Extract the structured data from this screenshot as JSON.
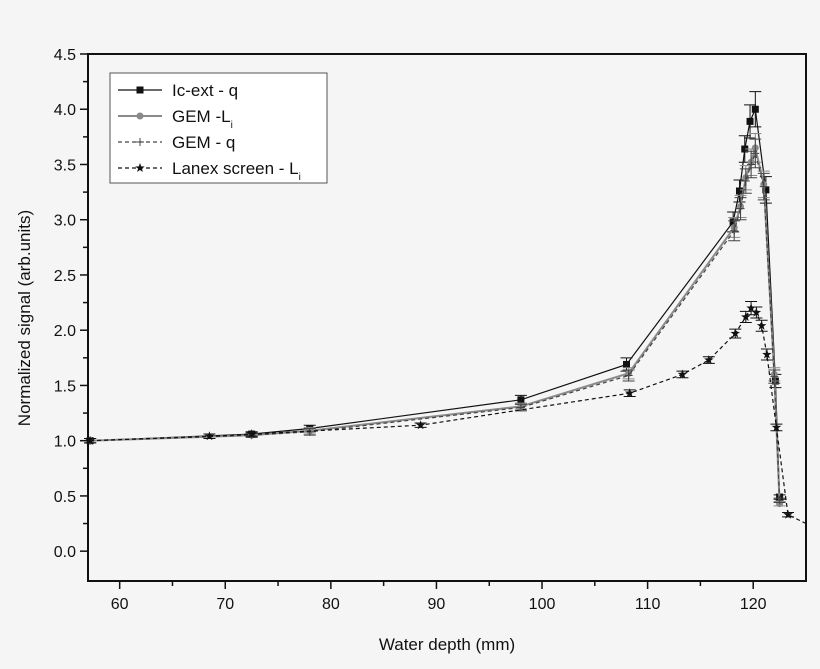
{
  "chart_data": {
    "type": "line",
    "title": "",
    "xlabel": "Water depth (mm)",
    "ylabel": "Normalized signal (arb.units)",
    "xlim": [
      57,
      125
    ],
    "ylim": [
      -0.27,
      4.5
    ],
    "xticks": [
      60,
      70,
      80,
      90,
      100,
      110,
      120
    ],
    "xtick_labels": [
      "60",
      "70",
      "80",
      "90",
      "100",
      "110",
      "120"
    ],
    "yticks": [
      0.0,
      0.5,
      1.0,
      1.5,
      2.0,
      2.5,
      3.0,
      3.5,
      4.0,
      4.5
    ],
    "ytick_labels": [
      "0.0",
      "0.5",
      "1.0",
      "1.5",
      "2.0",
      "2.5",
      "3.0",
      "3.5",
      "4.0",
      "4.5"
    ],
    "grid": false,
    "legend_position": "top-left",
    "series": [
      {
        "name": "Ic-ext - q",
        "legend_main": "Ic-ext - q",
        "legend_sub": "",
        "color": "#111111",
        "dash": "",
        "marker": "square",
        "x": [
          57.2,
          72.5,
          78.0,
          98.0,
          108.0,
          118.1,
          118.7,
          119.2,
          119.7,
          120.2,
          121.2,
          122.1,
          122.5
        ],
        "y": [
          1.0,
          1.06,
          1.11,
          1.37,
          1.69,
          2.98,
          3.26,
          3.64,
          3.89,
          4.0,
          3.27,
          1.54,
          0.49
        ],
        "err": [
          0.02,
          0.02,
          0.03,
          0.04,
          0.06,
          0.09,
          0.1,
          0.12,
          0.15,
          0.16,
          0.12,
          0.06,
          0.02
        ]
      },
      {
        "name": "GEM -Li",
        "legend_main": "GEM -L",
        "legend_sub": "i",
        "color": "#8a8a8a",
        "dash": "",
        "marker": "circle",
        "x": [
          57.2,
          72.5,
          78.0,
          98.0,
          108.2,
          118.2,
          118.8,
          119.3,
          119.8,
          120.2,
          121.0,
          122.0,
          122.5
        ],
        "y": [
          1.0,
          1.05,
          1.09,
          1.31,
          1.61,
          2.93,
          3.12,
          3.38,
          3.52,
          3.65,
          3.32,
          1.6,
          0.43
        ],
        "err": [
          0.02,
          0.02,
          0.03,
          0.03,
          0.05,
          0.09,
          0.1,
          0.11,
          0.12,
          0.13,
          0.12,
          0.06,
          0.02
        ]
      },
      {
        "name": "GEM - q",
        "legend_main": "GEM - q",
        "legend_sub": "",
        "color": "#444444",
        "dash": "4,3",
        "marker": "plus",
        "x": [
          57.2,
          72.5,
          78.0,
          98.0,
          108.2,
          118.2,
          118.8,
          119.3,
          119.8,
          120.2,
          121.0,
          122.0,
          122.5
        ],
        "y": [
          1.0,
          1.05,
          1.08,
          1.3,
          1.59,
          2.9,
          3.1,
          3.35,
          3.5,
          3.6,
          3.3,
          1.58,
          0.46
        ],
        "err": [
          0.02,
          0.02,
          0.03,
          0.03,
          0.05,
          0.09,
          0.1,
          0.11,
          0.12,
          0.13,
          0.12,
          0.06,
          0.02
        ]
      },
      {
        "name": "Lanex screen - Li",
        "legend_main": "Lanex  screen - L",
        "legend_sub": "i",
        "color": "#111111",
        "dash": "4,3",
        "marker": "star",
        "x": [
          57.2,
          68.5,
          72.5,
          88.5,
          108.3,
          113.3,
          115.8,
          118.3,
          119.3,
          119.8,
          120.3,
          120.8,
          121.3,
          122.2,
          123.3,
          125.0
        ],
        "y": [
          1.0,
          1.04,
          1.06,
          1.14,
          1.43,
          1.6,
          1.73,
          1.97,
          2.12,
          2.2,
          2.16,
          2.04,
          1.78,
          1.12,
          0.33,
          0.25
        ],
        "err": [
          0.02,
          0.02,
          0.02,
          0.02,
          0.03,
          0.03,
          0.03,
          0.04,
          0.05,
          0.06,
          0.05,
          0.05,
          0.05,
          0.03,
          0.02,
          0
        ]
      }
    ]
  }
}
